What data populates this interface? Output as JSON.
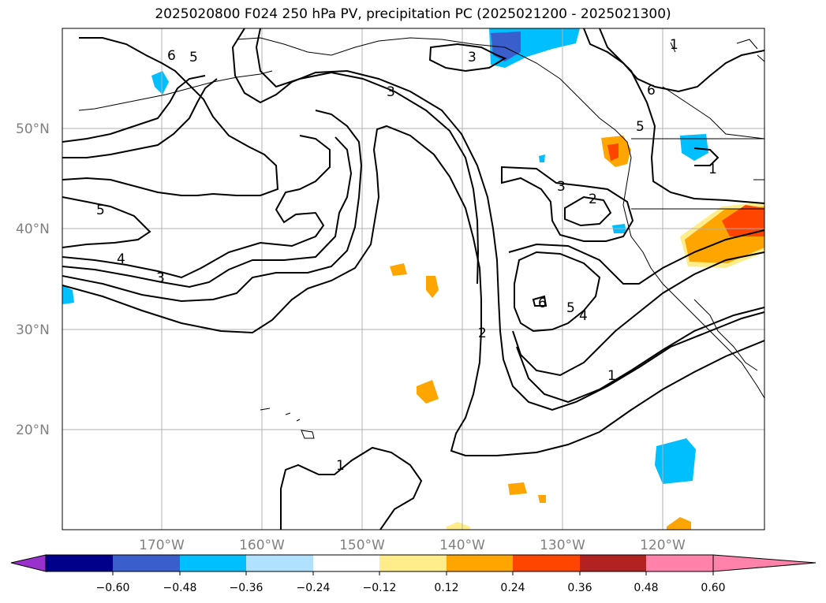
{
  "title": "2025020800 F024 250 hPa PV, precipitation PC (2025021200 - 2025021300)",
  "map": {
    "lat_labels": [
      "50°N",
      "40°N",
      "30°N",
      "20°N"
    ],
    "lon_labels": [
      "170°W",
      "160°W",
      "150°W",
      "140°W",
      "130°W",
      "120°W"
    ],
    "contour_labels": [
      "6",
      "5",
      "5",
      "4",
      "3",
      "3",
      "3",
      "3",
      "2",
      "2",
      "1",
      "1",
      "6",
      "5",
      "4",
      "1",
      "6",
      "5",
      "1"
    ]
  },
  "colorbar": {
    "colors": [
      "#9932CC",
      "#00008B",
      "#3A5FCD",
      "#00BFFF",
      "#B0E2FF",
      "#FFFFFF",
      "#FFEC8B",
      "#FFA500",
      "#FF4500",
      "#B22222",
      "#FF82AB"
    ],
    "labels": [
      "−0.60",
      "−0.48",
      "−0.36",
      "−0.24",
      "−0.12",
      "0.12",
      "0.24",
      "0.36",
      "0.48",
      "0.60"
    ]
  }
}
